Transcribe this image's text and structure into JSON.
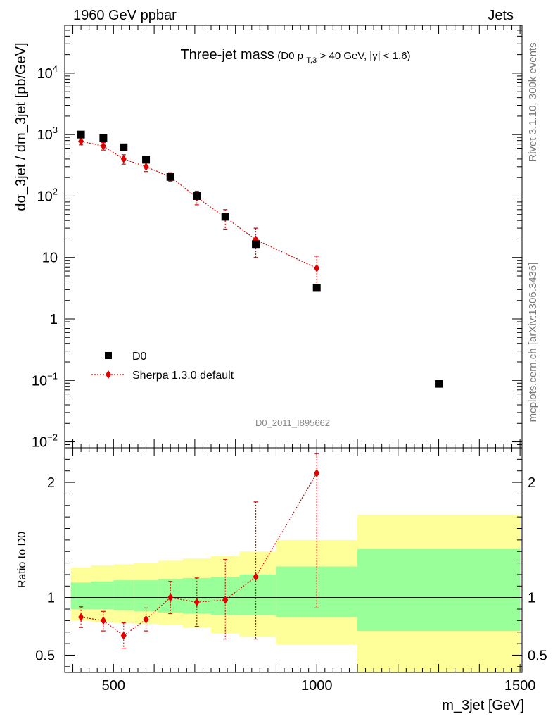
{
  "header": {
    "left": "1960 GeV ppbar",
    "right": "Jets"
  },
  "side_labels": {
    "rivet": "Rivet 3.1.10,  300k events",
    "mcplots": "mcplots.cern.ch [arXiv:1306.3436]"
  },
  "analysis_id": "D0_2011_I895662",
  "colors": {
    "data": "#000000",
    "mc": "#e00000",
    "band_inner": "#99ff99",
    "band_outer": "#ffff99"
  },
  "chart_data": [
    {
      "type": "scatter",
      "title": "Three-jet mass",
      "title_extra_pre": "(D0 p",
      "title_extra_sub": "T,3",
      "title_extra_post": " > 40 GeV, |y| < 1.6)",
      "ylabel": "dσ_3jet / dm_3jet [pb/GeV]",
      "y_scale": "log",
      "xlim": [
        380,
        1505
      ],
      "ylim": [
        0.008,
        60000
      ],
      "y_ticks": [
        {
          "value": 10000,
          "base": "10",
          "exp": "4"
        },
        {
          "value": 1000,
          "base": "10",
          "exp": "3"
        },
        {
          "value": 100,
          "base": "10",
          "exp": "2"
        },
        {
          "value": 10,
          "base": "10",
          "exp": ""
        },
        {
          "value": 1,
          "base": "1",
          "exp": ""
        },
        {
          "value": 0.1,
          "base": "10",
          "exp": "−1"
        },
        {
          "value": 0.01,
          "base": "10",
          "exp": "−2"
        }
      ],
      "legend_position": "bottom-left",
      "series": [
        {
          "name": "D0",
          "marker": "square",
          "x": [
            420,
            475,
            525,
            580,
            640,
            705,
            775,
            850,
            1000,
            1300
          ],
          "y": [
            1000,
            870,
            620,
            390,
            205,
            100,
            46,
            16.5,
            3.2,
            0.088
          ]
        },
        {
          "name": "Sherpa 1.3.0 default",
          "marker": "diamond",
          "line": "dotted",
          "x": [
            420,
            475,
            525,
            580,
            640,
            705,
            775,
            850,
            1000
          ],
          "y": [
            780,
            650,
            400,
            300,
            205,
            95,
            45,
            19.5,
            6.7
          ],
          "y_low": [
            680,
            560,
            330,
            250,
            175,
            72,
            29,
            10,
            3.1
          ],
          "y_high": [
            880,
            740,
            470,
            350,
            240,
            120,
            60,
            30,
            10.5
          ]
        }
      ]
    },
    {
      "type": "scatter",
      "xlabel": "m_3jet [GeV]",
      "ylabel": "Ratio to D0",
      "xlim": [
        380,
        1505
      ],
      "ylim": [
        0.35,
        2.3
      ],
      "x_ticks": [
        500,
        1000,
        1500
      ],
      "y_ticks": [
        0.5,
        1,
        2
      ],
      "reference": 1,
      "bands": {
        "edges": [
          395,
          445,
          500,
          550,
          610,
          670,
          740,
          810,
          900,
          1100,
          1500
        ],
        "inner_low": [
          0.9,
          0.9,
          0.89,
          0.88,
          0.87,
          0.86,
          0.85,
          0.85,
          0.83,
          0.71
        ],
        "inner_high": [
          1.13,
          1.14,
          1.15,
          1.15,
          1.16,
          1.17,
          1.18,
          1.2,
          1.27,
          1.42
        ],
        "outer_low": [
          0.8,
          0.79,
          0.78,
          0.77,
          0.76,
          0.74,
          0.69,
          0.66,
          0.59,
          0.35
        ],
        "outer_high": [
          1.26,
          1.28,
          1.29,
          1.3,
          1.32,
          1.34,
          1.36,
          1.4,
          1.5,
          1.72
        ]
      },
      "series": [
        {
          "name": "Sherpa 1.3.0 default",
          "marker": "diamond",
          "line": "dotted",
          "x": [
            420,
            475,
            525,
            580,
            640,
            705,
            775,
            850,
            1000
          ],
          "y": [
            0.83,
            0.8,
            0.67,
            0.81,
            1.0,
            0.96,
            0.98,
            1.18,
            2.08
          ],
          "y_low": [
            0.74,
            0.71,
            0.56,
            0.71,
            0.86,
            0.75,
            0.64,
            0.64,
            0.91
          ],
          "y_high": [
            0.92,
            0.88,
            0.78,
            0.91,
            1.14,
            1.17,
            1.33,
            1.83,
            2.25
          ]
        }
      ]
    }
  ]
}
